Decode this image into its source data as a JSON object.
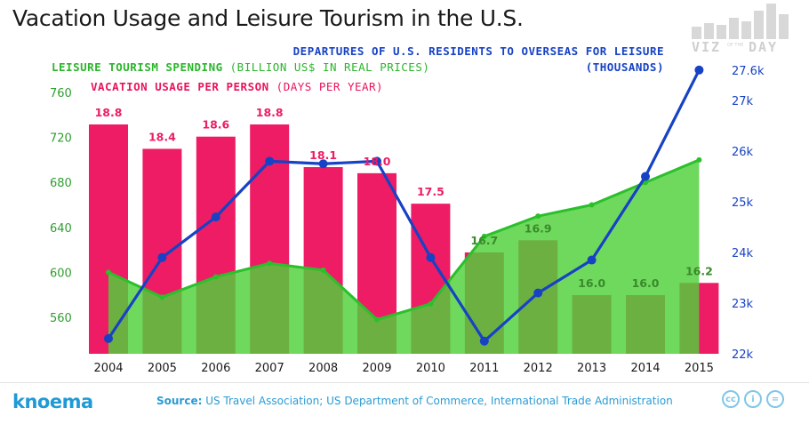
{
  "title": "Vacation Usage and Leisure Tourism in the U.S.",
  "legend": {
    "departures_line1": "DEPARTURES OF U.S. RESIDENTS TO OVERSEAS FOR LEISURE",
    "departures_line2": "(THOUSANDS)",
    "spending_name": "LEISURE TOURISM SPENDING",
    "spending_unit": " (BILLION US$ IN REAL PRICES)",
    "vacation_name": "VACATION USAGE PER PERSON",
    "vacation_unit": " (DAYS PER YEAR)"
  },
  "colors": {
    "pink": "#ee1c64",
    "green_line": "#2bc02b",
    "green_fill": "#4fd13b",
    "blue": "#1742c4",
    "green_axis": "#2f9e2f",
    "blue_axis": "#1742c4"
  },
  "chart_data": {
    "type": "bar",
    "categories": [
      "2004",
      "2005",
      "2006",
      "2007",
      "2008",
      "2009",
      "2010",
      "2011",
      "2012",
      "2013",
      "2014",
      "2015"
    ],
    "series": [
      {
        "name": "VACATION USAGE PER PERSON",
        "kind": "bar",
        "values": [
          18.8,
          18.4,
          18.6,
          18.8,
          18.1,
          18.0,
          17.5,
          16.7,
          16.9,
          16.0,
          16.0,
          16.2
        ]
      },
      {
        "name": "LEISURE TOURISM SPENDING",
        "kind": "area",
        "axis": "left",
        "values": [
          600,
          578,
          596,
          608,
          602,
          558,
          572,
          632,
          650,
          660,
          680,
          700
        ]
      },
      {
        "name": "DEPARTURES OF U.S. RESIDENTS TO OVERSEAS FOR LEISURE",
        "kind": "line",
        "axis": "right",
        "values": [
          22.3,
          23.9,
          24.7,
          25.8,
          25.75,
          25.8,
          23.9,
          22.25,
          23.2,
          23.85,
          25.5,
          27.6
        ]
      }
    ],
    "left_axis": {
      "ticks": [
        "760",
        "720",
        "680",
        "640",
        "600",
        "560"
      ]
    },
    "right_axis": {
      "ticks": [
        "27.6k",
        "27k",
        "26k",
        "25k",
        "24k",
        "23k",
        "22k"
      ]
    },
    "bar_labels": [
      "18.8",
      "18.4",
      "18.6",
      "18.8",
      "18.1",
      "18.0",
      "17.5",
      "16.7",
      "16.9",
      "16.0",
      "16.0",
      "16.2"
    ]
  },
  "footer": {
    "brand": "knoema",
    "source_label": "Source:",
    "source_text": " US Travel Association; US Department of Commerce, International Trade Administration",
    "cc_icons": [
      "cc",
      "i",
      "="
    ]
  },
  "viz_logo": {
    "text": "VIZ",
    "of": "OF THE",
    "day": "DAY"
  }
}
